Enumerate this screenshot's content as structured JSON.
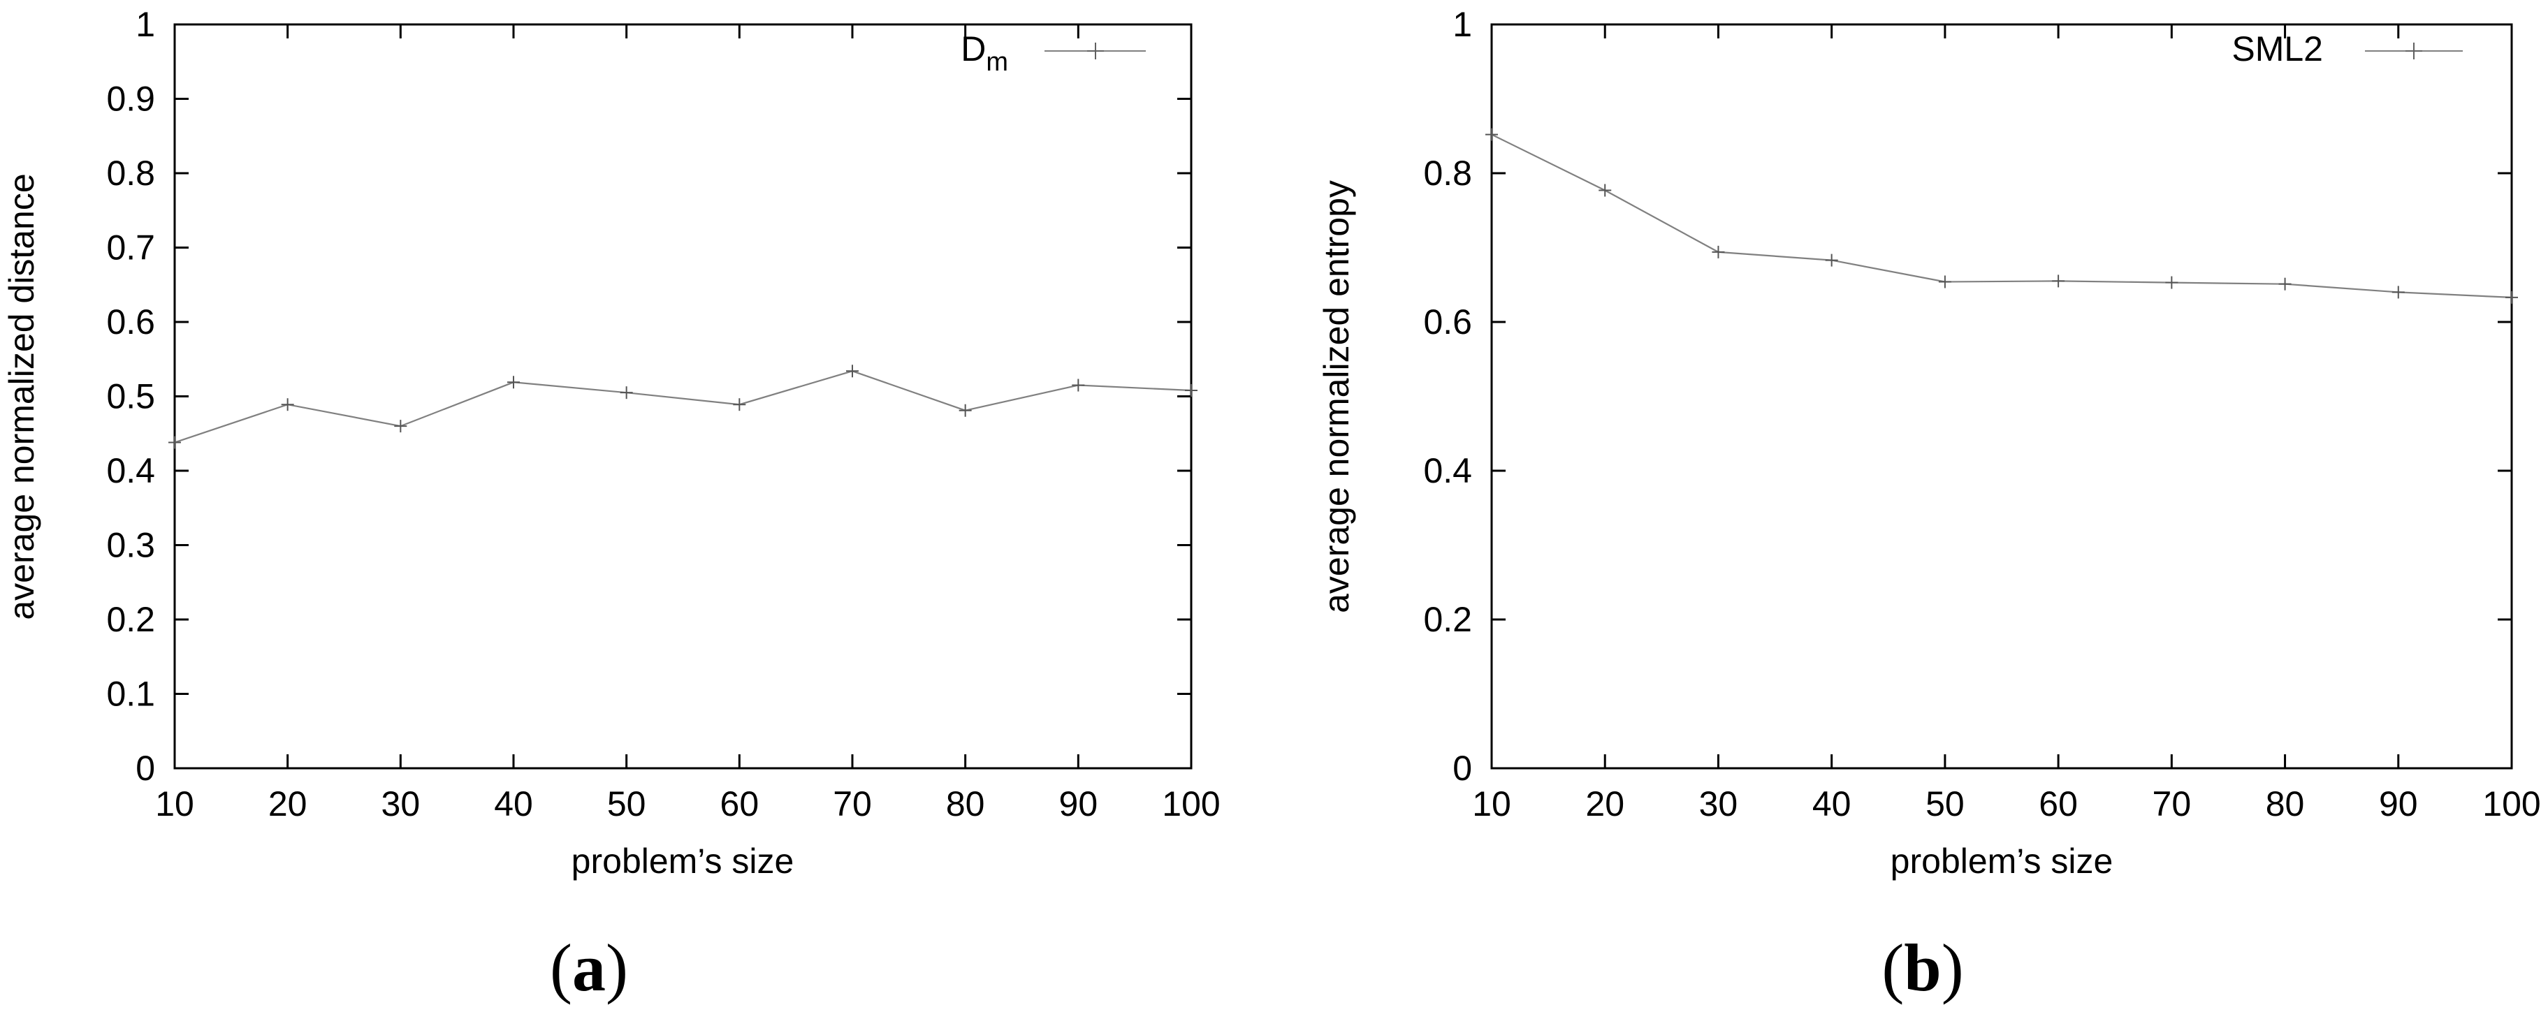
{
  "chart_data": [
    {
      "type": "line",
      "panel_label": {
        "open": "(",
        "letter": "a",
        "close": ")"
      },
      "xlabel": "problem’s size",
      "ylabel": "average normalized distance",
      "xlim": [
        10,
        100
      ],
      "ylim": [
        0,
        1
      ],
      "x_ticks": [
        "10",
        "20",
        "30",
        "40",
        "50",
        "60",
        "70",
        "80",
        "90",
        "100"
      ],
      "y_ticks": [
        "0",
        "0.1",
        "0.2",
        "0.3",
        "0.4",
        "0.5",
        "0.6",
        "0.7",
        "0.8",
        "0.9",
        "1"
      ],
      "legend_position": "top-right",
      "grid": false,
      "series": [
        {
          "name": "D",
          "name_subscript": "m",
          "color": "#808080",
          "marker": "plus",
          "x": [
            10,
            20,
            30,
            40,
            50,
            60,
            70,
            80,
            90,
            100
          ],
          "y": [
            0.438,
            0.489,
            0.46,
            0.519,
            0.505,
            0.489,
            0.534,
            0.481,
            0.515,
            0.508
          ]
        }
      ]
    },
    {
      "type": "line",
      "panel_label": {
        "open": "(",
        "letter": "b",
        "close": ")"
      },
      "xlabel": "problem’s size",
      "ylabel": "average normalized entropy",
      "xlim": [
        10,
        100
      ],
      "ylim": [
        0,
        1
      ],
      "x_ticks": [
        "10",
        "20",
        "30",
        "40",
        "50",
        "60",
        "70",
        "80",
        "90",
        "100"
      ],
      "y_ticks": [
        "0",
        "0.2",
        "0.4",
        "0.6",
        "0.8",
        "1"
      ],
      "legend_position": "top-right",
      "grid": false,
      "series": [
        {
          "name": "SML2",
          "color": "#808080",
          "marker": "plus",
          "x": [
            10,
            20,
            30,
            40,
            50,
            60,
            70,
            80,
            90,
            100
          ],
          "y": [
            0.852,
            0.777,
            0.694,
            0.683,
            0.654,
            0.655,
            0.653,
            0.651,
            0.64,
            0.633
          ]
        }
      ]
    }
  ]
}
